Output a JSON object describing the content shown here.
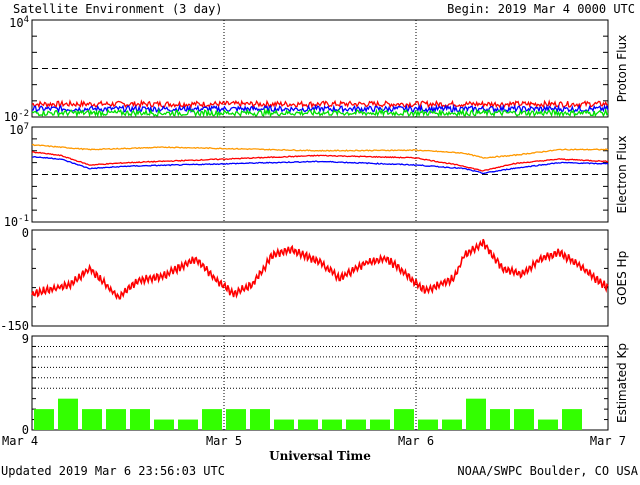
{
  "header": {
    "title": "Satellite Environment (3 day)",
    "begin": "Begin:  2019 Mar 4 0000 UTC"
  },
  "footer": {
    "updated": "Updated 2019 Mar  6 23:56:03 UTC",
    "credit": "NOAA/SWPC Boulder, CO USA",
    "xlabel": "Universal Time"
  },
  "colors": {
    "red": "#ff0000",
    "blue": "#0000ff",
    "green": "#00e000",
    "orange": "#ff9900",
    "kp_bar": "#33ff00"
  },
  "chart_data": [
    {
      "type": "line",
      "ylabel": "Proton Flux",
      "scale": "log",
      "ylim_exp": [
        -2,
        4
      ],
      "ytick_labels": [
        {
          "base": "10",
          "exp": "4",
          "value_exp": 4
        },
        {
          "base": "10",
          "exp": "-2",
          "value_exp": -2
        }
      ],
      "threshold_exp": 1,
      "series": [
        {
          "color": "red",
          "level_exp": -1.2
        },
        {
          "color": "blue",
          "level_exp": -1.5
        },
        {
          "color": "green",
          "level_exp": -1.75
        }
      ]
    },
    {
      "type": "line",
      "ylabel": "Electron Flux",
      "scale": "log",
      "ylim_exp": [
        -1,
        7
      ],
      "ytick_labels": [
        {
          "base": "10",
          "exp": "7",
          "value_exp": 7
        },
        {
          "base": "10",
          "exp": "-1",
          "value_exp": -1
        }
      ],
      "threshold_exp": 3,
      "series": [
        {
          "color": "orange",
          "keyframes_exp": [
            [
              0,
              5.5
            ],
            [
              0.3,
              5.1
            ],
            [
              0.7,
              5.3
            ],
            [
              1.5,
              5.0
            ],
            [
              2.0,
              5.05
            ],
            [
              2.25,
              4.8
            ],
            [
              2.35,
              4.4
            ],
            [
              2.5,
              4.6
            ],
            [
              2.75,
              5.1
            ],
            [
              3.0,
              5.1
            ]
          ]
        },
        {
          "color": "red",
          "keyframes_exp": [
            [
              0,
              4.9
            ],
            [
              0.15,
              4.6
            ],
            [
              0.3,
              3.8
            ],
            [
              0.5,
              4.0
            ],
            [
              1.0,
              4.3
            ],
            [
              1.5,
              4.6
            ],
            [
              2.0,
              4.4
            ],
            [
              2.25,
              3.7
            ],
            [
              2.35,
              3.3
            ],
            [
              2.5,
              3.9
            ],
            [
              2.75,
              4.3
            ],
            [
              3.0,
              4.1
            ]
          ]
        },
        {
          "color": "blue",
          "keyframes_exp": [
            [
              0,
              4.5
            ],
            [
              0.15,
              4.3
            ],
            [
              0.3,
              3.5
            ],
            [
              0.5,
              3.7
            ],
            [
              1.0,
              3.9
            ],
            [
              1.5,
              4.1
            ],
            [
              2.0,
              3.8
            ],
            [
              2.25,
              3.5
            ],
            [
              2.35,
              3.1
            ],
            [
              2.5,
              3.5
            ],
            [
              2.75,
              4.0
            ],
            [
              3.0,
              3.9
            ]
          ]
        }
      ]
    },
    {
      "type": "line",
      "ylabel": "GOES Hp",
      "ylim": [
        -150,
        0
      ],
      "ytick_labels": [
        {
          "label": "0",
          "value": 0
        },
        {
          "label": "-150",
          "value": -150,
          "color": "red"
        }
      ],
      "series": [
        {
          "color": "red",
          "keyframes": [
            [
              0,
              -100
            ],
            [
              0.2,
              -85
            ],
            [
              0.3,
              -60
            ],
            [
              0.35,
              -75
            ],
            [
              0.45,
              -105
            ],
            [
              0.55,
              -80
            ],
            [
              0.7,
              -70
            ],
            [
              0.85,
              -45
            ],
            [
              0.95,
              -75
            ],
            [
              1.05,
              -100
            ],
            [
              1.15,
              -85
            ],
            [
              1.25,
              -40
            ],
            [
              1.35,
              -30
            ],
            [
              1.5,
              -50
            ],
            [
              1.6,
              -75
            ],
            [
              1.75,
              -50
            ],
            [
              1.85,
              -45
            ],
            [
              1.95,
              -70
            ],
            [
              2.05,
              -95
            ],
            [
              2.2,
              -75
            ],
            [
              2.25,
              -40
            ],
            [
              2.35,
              -20
            ],
            [
              2.45,
              -60
            ],
            [
              2.55,
              -70
            ],
            [
              2.65,
              -45
            ],
            [
              2.75,
              -35
            ],
            [
              2.85,
              -55
            ],
            [
              2.95,
              -80
            ],
            [
              3.0,
              -90
            ]
          ]
        }
      ]
    },
    {
      "type": "bar",
      "ylabel": "Estimated Kp",
      "ylim": [
        0,
        9
      ],
      "ytick_labels": [
        {
          "label": "9",
          "value": 9
        },
        {
          "label": "0",
          "value": 0
        }
      ],
      "grid_values": [
        4,
        5,
        6,
        7,
        8
      ],
      "values": [
        2,
        3,
        2,
        2,
        2,
        1,
        1,
        2,
        2,
        2,
        1,
        1,
        1,
        1,
        1,
        2,
        1,
        1,
        3,
        2,
        2,
        1,
        2,
        0
      ]
    }
  ],
  "x_axis": {
    "xlim": [
      0,
      3
    ],
    "ticks": [
      {
        "label": "Mar 4",
        "value": 0
      },
      {
        "label": "Mar 5",
        "value": 1
      },
      {
        "label": "Mar 6",
        "value": 2
      },
      {
        "label": "Mar 7",
        "value": 3
      }
    ],
    "day_dividers": [
      1,
      2
    ]
  }
}
